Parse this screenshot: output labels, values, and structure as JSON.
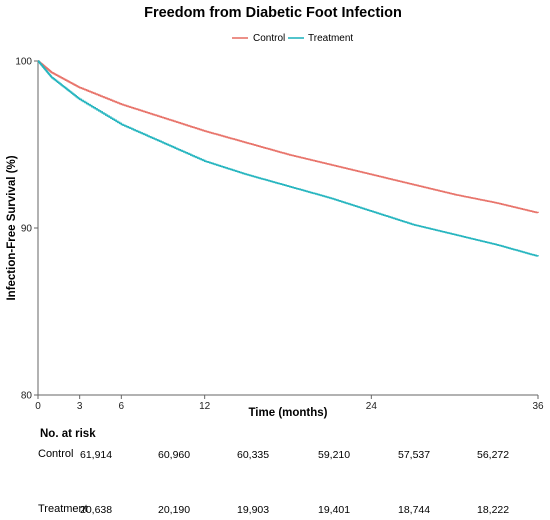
{
  "chart_data": {
    "type": "line",
    "title": "Freedom from Diabetic Foot Infection",
    "xlabel": "Time (months)",
    "ylabel": "Infection-Free Survival (%)",
    "xlim": [
      0,
      36
    ],
    "ylim": [
      80,
      100
    ],
    "x_ticks": [
      "0",
      "3",
      "6",
      "12",
      "24",
      "36"
    ],
    "y_ticks": [
      "80",
      "90",
      "100"
    ],
    "legend_position": "top-center",
    "grid": false,
    "series": [
      {
        "name": "Control",
        "color": "#e8746b",
        "x": [
          0,
          1,
          3,
          6,
          9,
          12,
          15,
          18,
          21,
          24,
          27,
          30,
          33,
          36
        ],
        "y": [
          100,
          99.3,
          98.4,
          97.4,
          96.6,
          95.8,
          95.1,
          94.4,
          93.8,
          93.2,
          92.6,
          92.0,
          91.5,
          90.9
        ]
      },
      {
        "name": "Treatment",
        "color": "#26b5bf",
        "x": [
          0,
          1,
          3,
          6,
          9,
          12,
          15,
          18,
          21,
          24,
          27,
          30,
          33,
          36
        ],
        "y": [
          100,
          99.0,
          97.7,
          96.2,
          95.1,
          94.0,
          93.2,
          92.5,
          91.8,
          91.0,
          90.2,
          89.6,
          89.0,
          88.3
        ]
      }
    ]
  },
  "risk_table": {
    "heading": "No. at risk",
    "rows": [
      {
        "label": "Control",
        "values": [
          "61,914",
          "60,960",
          "60,335",
          "59,210",
          "57,537",
          "56,272"
        ]
      },
      {
        "label": "Treatment",
        "values": [
          "20,638",
          "20,190",
          "19,903",
          "19,401",
          "18,744",
          "18,222"
        ]
      }
    ]
  }
}
